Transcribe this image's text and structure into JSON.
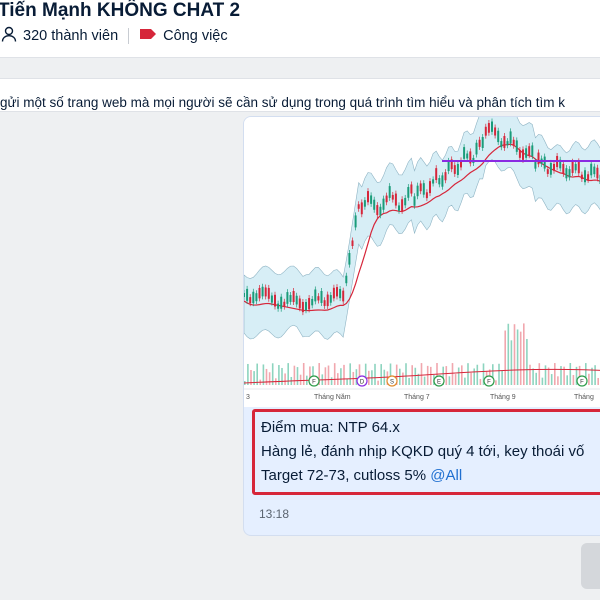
{
  "header": {
    "title": "Tiến Mạnh KHÔNG CHAT 2",
    "members": "320 thành viên",
    "category": "Công việc",
    "category_color": "#d6263a"
  },
  "pinned": {
    "text": "gửi một số trang web mà mọi người sẽ cần sử dụng trong quá trình tìm hiểu và phân tích tìm k"
  },
  "chart": {
    "x_labels": [
      "3",
      "Tháng Năm",
      "Tháng 7",
      "Tháng 9",
      "Tháng"
    ],
    "event_markers": [
      "F",
      "D",
      "S",
      "E",
      "F",
      "F"
    ]
  },
  "message": {
    "line1": "Điểm mua: NTP 64.x",
    "line2": "Hàng lẻ, đánh nhịp KQKD quý 4 tới, key thoái vố",
    "line3_text": "Target 72-73, cutloss 5% ",
    "mention": "@All",
    "time": "13:18"
  },
  "icons": {
    "members": "person-icon",
    "category": "tag-icon"
  }
}
